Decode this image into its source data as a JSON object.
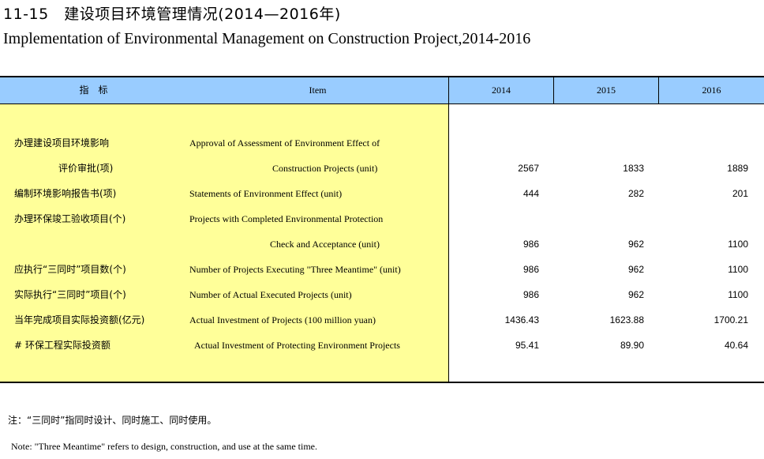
{
  "title": {
    "cn": "11-15　建设项目环境管理情况(2014—2016年)",
    "en": "Implementation of Environmental Management on Construction Project,2014-2016"
  },
  "header": {
    "indicator_cn": "指　标",
    "item_en": "Item",
    "years": [
      "2014",
      "2015",
      "2016"
    ]
  },
  "rows": [
    {
      "cn": "办理建设项目环境影响",
      "en": "Approval of Assessment of Environment Effect of",
      "v": [
        "",
        "",
        ""
      ]
    },
    {
      "cn": "评价审批(项)",
      "en": "Construction Projects (unit)",
      "v": [
        "2567",
        "1833",
        "1889"
      ]
    },
    {
      "cn": "编制环境影响报告书(项)",
      "en": "Statements of Environment Effect (unit)",
      "v": [
        "444",
        "282",
        "201"
      ]
    },
    {
      "cn": "办理环保竣工验收项目(个)",
      "en": "Projects with Completed Environmental Protection",
      "v": [
        "",
        "",
        ""
      ]
    },
    {
      "cn": "",
      "en": "Check and Acceptance (unit)",
      "v": [
        "986",
        "962",
        "1100"
      ]
    },
    {
      "cn": "应执行“三同时”项目数(个)",
      "en": "Number of Projects Executing \"Three Meantime\" (unit)",
      "v": [
        "986",
        "962",
        "1100"
      ]
    },
    {
      "cn": "实际执行“三同时”项目(个)",
      "en": "Number of Actual Executed Projects (unit)",
      "v": [
        "986",
        "962",
        "1100"
      ]
    },
    {
      "cn": "当年完成项目实际投资额(亿元)",
      "en": "Actual Investment of Projects (100 million yuan)",
      "v": [
        "1436.43",
        "1623.88",
        "1700.21"
      ]
    },
    {
      "cn": "# 环保工程实际投资额",
      "en": "Actual Investment of Protecting Environment Projects",
      "v": [
        "95.41",
        "89.90",
        "40.64"
      ]
    }
  ],
  "notes": {
    "cn": "注：“三同时”指同时设计、同时施工、同时使用。",
    "en": "Note: \"Three Meantime\" refers to design, construction, and use at the same time."
  },
  "colors": {
    "header_bg": "#99ccff",
    "indicator_bg": "#ffff99"
  }
}
